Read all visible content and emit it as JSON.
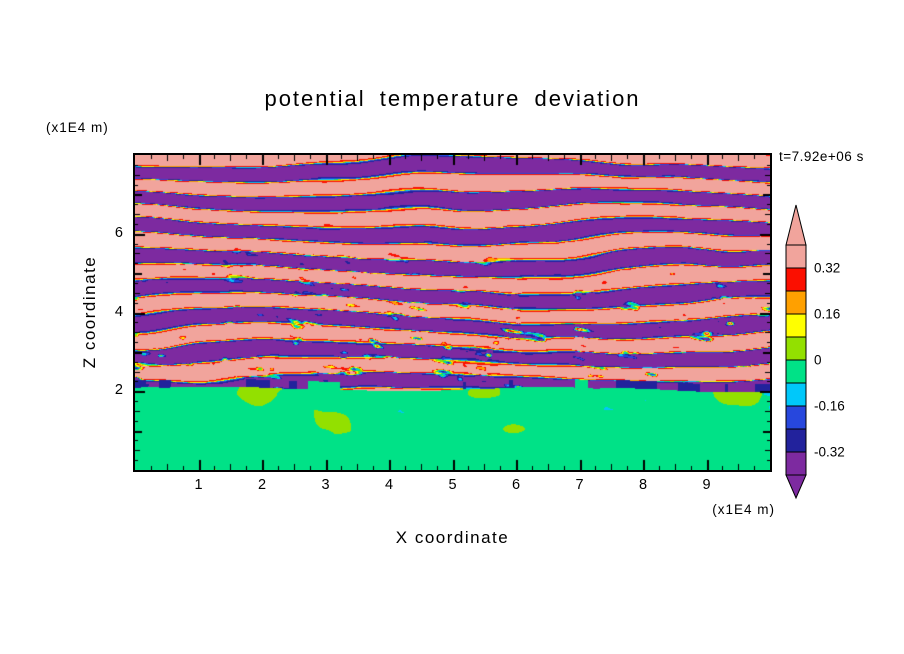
{
  "title": "potential temperature deviation",
  "timestamp": "t=7.92e+06 s",
  "axes": {
    "x": {
      "label": "X coordinate",
      "unit": "(x1E4 m)",
      "ticks": [
        1,
        2,
        3,
        4,
        5,
        6,
        7,
        8,
        9
      ]
    },
    "z": {
      "label": "Z coordinate",
      "unit": "(x1E4 m)",
      "ticks": [
        2,
        4,
        6
      ]
    }
  },
  "colorbar": {
    "labels": [
      "0.32",
      "0.16",
      "0",
      "-0.16",
      "-0.32"
    ]
  },
  "chart_data": {
    "type": "heatmap",
    "title": "potential temperature deviation",
    "xlabel": "X coordinate",
    "ylabel": "Z coordinate",
    "x_unit": "(x1E4 m)",
    "z_unit": "(x1E4 m)",
    "x_range": [
      0,
      10
    ],
    "z_range": [
      0,
      8
    ],
    "time_label": "t=7.92e+06 s",
    "levels": [
      -0.32,
      -0.24,
      -0.16,
      -0.08,
      0,
      0.08,
      0.16,
      0.24,
      0.32
    ],
    "palette": [
      "#7D2AA0",
      "#22229C",
      "#2747DD",
      "#00C8FA",
      "#00E287",
      "#93E000",
      "#FFFF00",
      "#FFA000",
      "#FB0F00",
      "#F1A49C"
    ],
    "colorbar_tick_labels": [
      "0.32",
      "0.16",
      "0",
      "-0.16",
      "-0.32"
    ],
    "field": {
      "kind": "procedural-approximation",
      "description": "Horizontally layered gravity-wave bands saturating beyond +/-0.32 (pink/purple stripes with thin multicolor fringes of red, orange, yellow, cyan and navy) filling z from about 2 to 8; a convective boundary layer of near-zero deviation (spring green with chartreuse patches and sparse cyan/navy wisps) fills z below about 2.",
      "interface_z": 2.05,
      "wave_wavelength_z": 0.78,
      "wave_amp_base": 0.3,
      "wave_amp_var": 0.45,
      "steepness": 0.4
    }
  }
}
